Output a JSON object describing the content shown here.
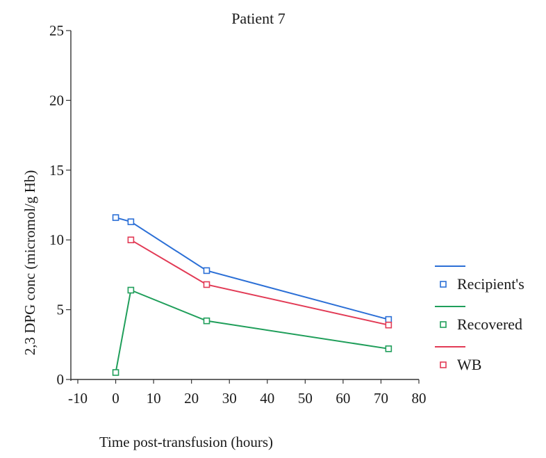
{
  "chart_data": {
    "type": "line",
    "title": "Patient 7",
    "xlabel": "Time post-transfusion (hours)",
    "ylabel": "2,3 DPG conc (micromol/g Hb)",
    "xlim": [
      -10,
      80
    ],
    "ylim": [
      0,
      25
    ],
    "xticks": [
      "-10",
      "0",
      "10",
      "20",
      "30",
      "40",
      "50",
      "60",
      "70",
      "80"
    ],
    "yticks": [
      "0",
      "5",
      "10",
      "15",
      "20",
      "25"
    ],
    "grid": false,
    "legend_position": "right",
    "series": [
      {
        "name": "Recipient's",
        "color": "#2b6fd6",
        "marker": "open-square",
        "x": [
          0,
          4,
          24,
          72
        ],
        "y": [
          11.6,
          11.3,
          7.8,
          4.3
        ]
      },
      {
        "name": "Recovered",
        "color": "#1f9e5a",
        "marker": "open-square",
        "x": [
          0,
          4,
          24,
          72
        ],
        "y": [
          0.5,
          6.4,
          4.2,
          2.2
        ]
      },
      {
        "name": "WB",
        "color": "#e23a55",
        "marker": "open-square",
        "x": [
          4,
          24,
          72
        ],
        "y": [
          10.0,
          6.8,
          3.9
        ]
      }
    ]
  }
}
